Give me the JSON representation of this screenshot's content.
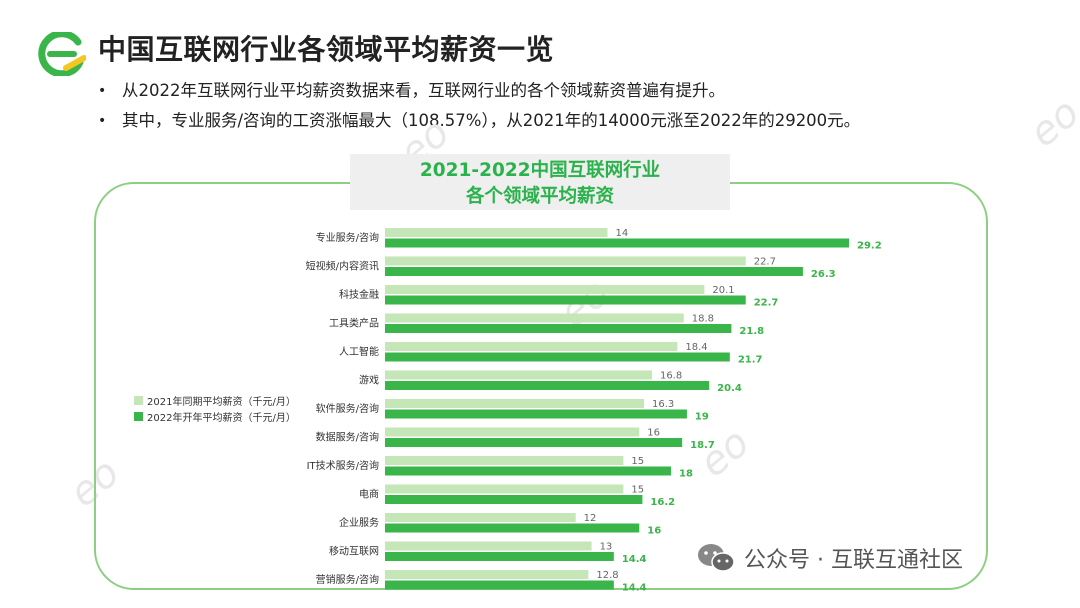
{
  "header": {
    "title": "中国互联网行业各领域平均薪资一览"
  },
  "bullets": [
    "从2022年互联网行业平均薪资数据来看，互联网行业的各个领域薪资普遍有提升。",
    "其中，专业服务/咨询的工资涨幅最大（108.57%），从2021年的14000元涨至2022年的29200元。"
  ],
  "chart_title": {
    "line1": "2021-2022中国互联网行业",
    "line2": "各个领域平均薪资"
  },
  "legend": {
    "item1": "2021年同期平均薪资（千元/月）",
    "item2": "2022年开年平均薪资（千元/月）"
  },
  "colors": {
    "light": "#c5e6b6",
    "dark": "#3ab54a",
    "accent": "#2bb24c",
    "frame": "#8dcf82"
  },
  "watermark": "公众号 · 互联互通社区",
  "chart_data": {
    "type": "bar",
    "orientation": "horizontal",
    "categories": [
      "专业服务/咨询",
      "短视频/内容资讯",
      "科技金融",
      "工具类产品",
      "人工智能",
      "游戏",
      "软件服务/咨询",
      "数据服务/咨询",
      "IT技术服务/咨询",
      "电商",
      "企业服务",
      "移动互联网",
      "营销服务/咨询"
    ],
    "series": [
      {
        "name": "2021年同期平均薪资（千元/月）",
        "values": [
          14,
          22.7,
          20.1,
          18.8,
          18.4,
          16.8,
          16.3,
          16,
          15,
          15,
          12,
          13,
          12.8
        ]
      },
      {
        "name": "2022年开年平均薪资（千元/月）",
        "values": [
          29.2,
          26.3,
          22.7,
          21.8,
          21.7,
          20.4,
          19,
          18.7,
          18,
          16.2,
          16,
          14.4,
          14.4
        ]
      }
    ],
    "value_labels": {
      "s1": [
        "14",
        "22.7",
        "20.1",
        "18.8",
        "18.4",
        "16.8",
        "16.3",
        "16",
        "15",
        "15",
        "12",
        "13",
        "12.8"
      ],
      "s2": [
        "29.2",
        "26.3",
        "22.7",
        "21.8",
        "21.7",
        "20.4",
        "19",
        "18.7",
        "18",
        "16.2",
        "16",
        "14.4",
        "14.4"
      ]
    },
    "xlim": [
      0,
      30
    ],
    "grid": false,
    "legend_position": "left"
  }
}
